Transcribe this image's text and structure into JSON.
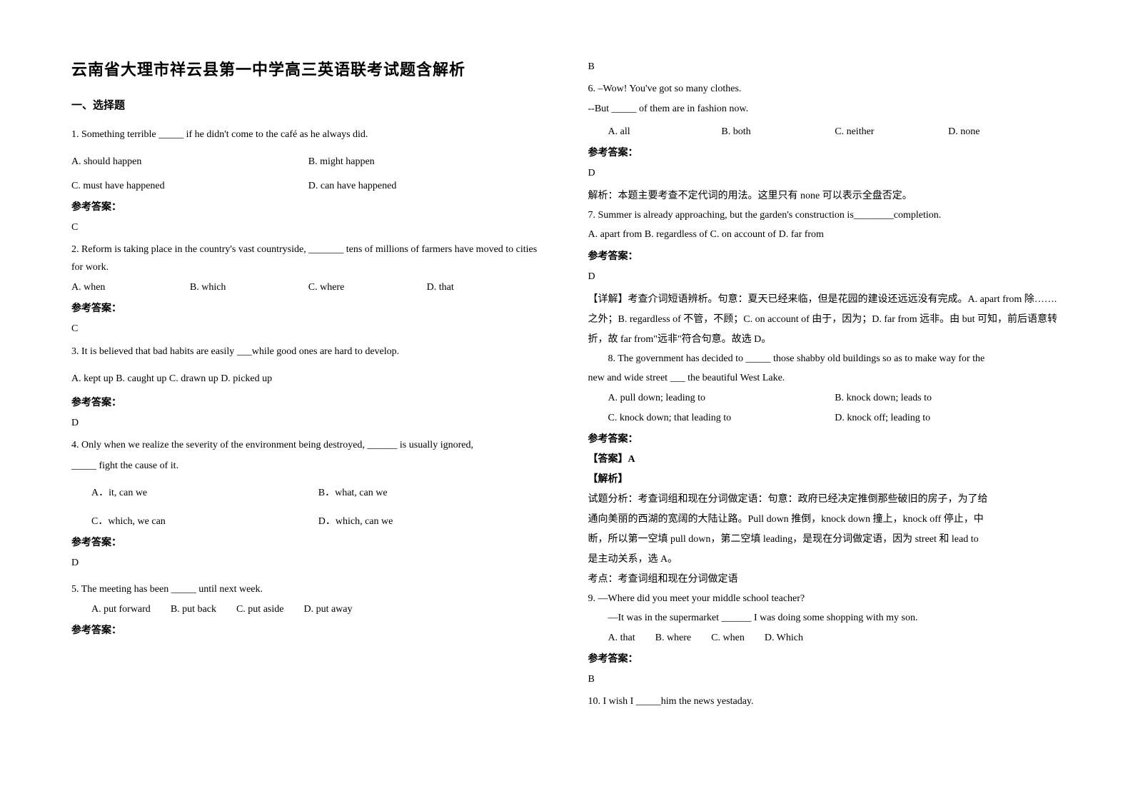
{
  "title": "云南省大理市祥云县第一中学高三英语联考试题含解析",
  "section1": "一、选择题",
  "answer_label": "参考答案：",
  "left": {
    "q1": {
      "text": "1. Something terrible _____ if he didn't come to the café as he always did.",
      "optA": "A. should happen",
      "optB": "B. might happen",
      "optC": "C. must have happened",
      "optD": "D. can have happened",
      "answer": "C"
    },
    "q2": {
      "text": "2. Reform is taking place in the country's vast countryside, _______ tens of millions of farmers have moved to cities for work.",
      "optA": "A. when",
      "optB": "B. which",
      "optC": "C. where",
      "optD": "D. that",
      "answer": "C"
    },
    "q3": {
      "text": "3. It is believed that bad habits are easily ___while good ones are hard to develop.",
      "opts_line": "A. kept up   B. caught up   C. drawn up   D. picked up",
      "answer": "D"
    },
    "q4": {
      "text1": "4. Only when we realize the severity of the environment being destroyed, ______ is usually ignored,",
      "text2": "_____ fight the cause of it.",
      "optA": "A．it, can we",
      "optB": "B．what, can we",
      "optC": "C．which, we can",
      "optD": "D．which, can we",
      "answer": "D"
    },
    "q5": {
      "text": "5. The meeting has been _____ until next week.",
      "optA": "A. put forward",
      "optB": "B. put back",
      "optC": "C. put aside",
      "optD": "D. put away"
    }
  },
  "right": {
    "q5_answer": "B",
    "q6": {
      "line1": "6. –Wow! You've got so many clothes.",
      "line2": "--But _____ of them are in fashion now.",
      "optA": "A. all",
      "optB": "B. both",
      "optC": "C. neither",
      "optD": "D. none",
      "answer": "D",
      "explain": "解析：本题主要考查不定代词的用法。这里只有 none 可以表示全盘否定。"
    },
    "q7": {
      "text": "7. Summer is already approaching, but the garden's construction is________completion.",
      "opts_line": "A. apart from    B. regardless of  C. on account of           D. far from",
      "answer": "D",
      "explain": "【详解】考查介词短语辨析。句意：夏天已经来临，但是花园的建设还远远没有完成。A. apart from   除…….之外；B. regardless of 不管，不顾；C. on account of 由于，因为；D. far from 远非。由 but 可知，前后语意转折，故 far from\"远非\"符合句意。故选 D。"
    },
    "q8": {
      "text1": "8. The government has decided to _____ those shabby old buildings so as to make way for the",
      "text2": "new and wide street ___ the beautiful West Lake.",
      "optA": "A. pull down; leading to",
      "optB": "B. knock down; leads to",
      "optC": "C. knock down; that leading to",
      "optD": "D. knock off; leading to",
      "answer_tag": "【答案】A",
      "explain_tag": "【解析】",
      "explain1": "试题分析：考查词组和现在分词做定语：句意：政府已经决定推倒那些破旧的房子，为了给",
      "explain2": "通向美丽的西湖的宽阔的大陆让路。Pull down 推倒，knock down 撞上，knock off 停止，中",
      "explain3": "断，所以第一空填 pull down，第二空填 leading，是现在分词做定语，因为 street 和 lead to",
      "explain4": "是主动关系，选 A。",
      "explain5": "考点：考查词组和现在分词做定语"
    },
    "q9": {
      "line1": "9. —Where did you meet your middle school teacher?",
      "line2": "—It was in the supermarket ______ I was doing some shopping with my son.",
      "optA": "A. that",
      "optB": "B. where",
      "optC": "C. when",
      "optD": "D. Which",
      "answer": "B"
    },
    "q10": {
      "text": "10. I wish I _____him the news yestaday."
    }
  }
}
